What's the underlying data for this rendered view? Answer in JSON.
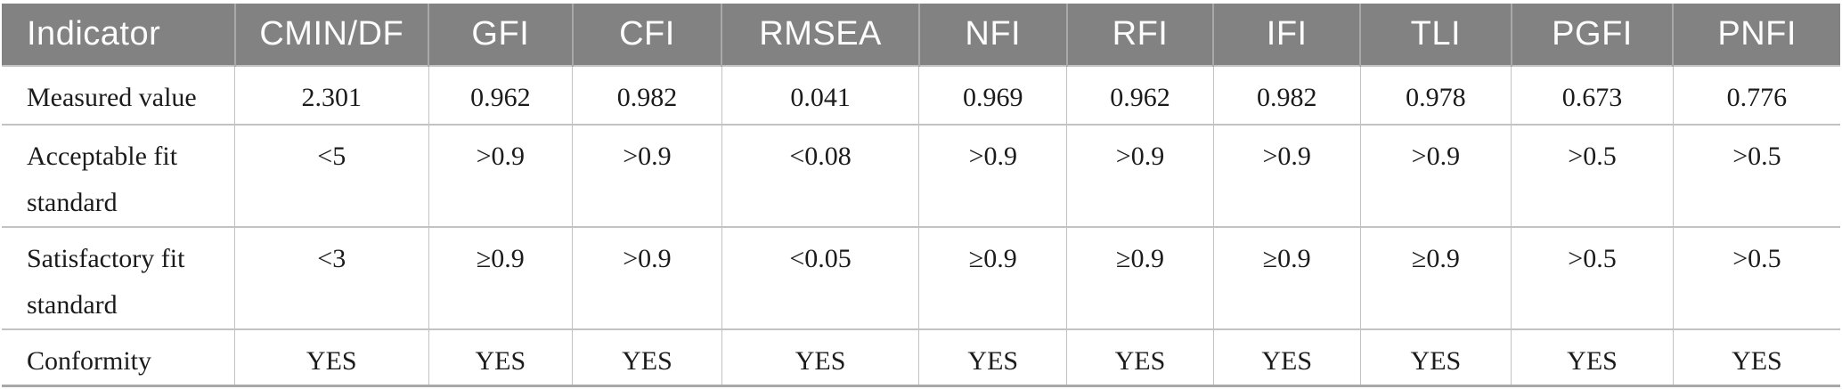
{
  "table": {
    "title_semantic": "Model fit indices table",
    "columns": [
      "Indicator",
      "CMIN/DF",
      "GFI",
      "CFI",
      "RMSEA",
      "NFI",
      "RFI",
      "IFI",
      "TLI",
      "PGFI",
      "PNFI"
    ],
    "rows": [
      {
        "label": "Measured value",
        "values": [
          "2.301",
          "0.962",
          "0.982",
          "0.041",
          "0.969",
          "0.962",
          "0.982",
          "0.978",
          "0.673",
          "0.776"
        ]
      },
      {
        "label": "Acceptable fit standard",
        "values": [
          "<5",
          ">0.9",
          ">0.9",
          "<0.08",
          ">0.9",
          ">0.9",
          ">0.9",
          ">0.9",
          ">0.5",
          ">0.5"
        ]
      },
      {
        "label": "Satisfactory fit standard",
        "values": [
          "<3",
          "≥0.9",
          ">0.9",
          "<0.05",
          "≥0.9",
          "≥0.9",
          "≥0.9",
          "≥0.9",
          ">0.5",
          ">0.5"
        ]
      },
      {
        "label": "Conformity",
        "values": [
          "YES",
          "YES",
          "YES",
          "YES",
          "YES",
          "YES",
          "YES",
          "YES",
          "YES",
          "YES"
        ]
      }
    ]
  },
  "colors": {
    "header_bg": "#828282",
    "header_text": "#fdfdfd",
    "header_divider": "#a8a8a8",
    "body_text": "#1b1b1b",
    "border_light": "#c2c2c2",
    "bottom_border": "#a8a8a8",
    "page_bg": "#ffffff"
  }
}
